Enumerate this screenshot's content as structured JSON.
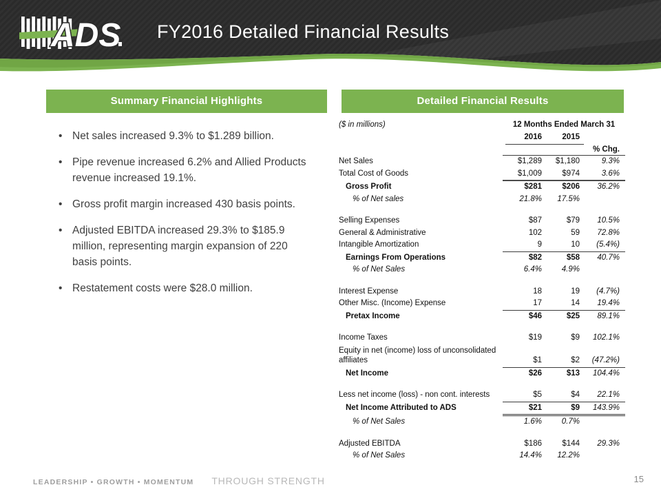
{
  "header": {
    "title": "FY2016 Detailed Financial Results",
    "logo_text": "ADS"
  },
  "colors": {
    "accent_green": "#7CB350",
    "header_dark": "#2A2A2A",
    "table_text": "#111111",
    "bullet_text": "#404040",
    "footer_gray": "#9E9E9E"
  },
  "left_panel": {
    "title": "Summary Financial Highlights",
    "bullets": [
      "Net sales increased 9.3% to $1.289 billion.",
      "Pipe revenue increased 6.2% and Allied Products revenue increased 19.1%.",
      "Gross profit margin increased 430 basis points.",
      "Adjusted EBITDA increased 29.3% to $185.9 million, representing margin expansion of 220 basis points.",
      "Restatement costs were $28.0 million."
    ]
  },
  "right_panel": {
    "title": "Detailed Financial Results",
    "units_note": "($ in millions)",
    "period_header": "12 Months Ended March 31",
    "col_2016": "2016",
    "col_2015": "2015",
    "pct_chg_label": "% Chg.",
    "rows": [
      {
        "label": "Net Sales",
        "v2016": "$1,289",
        "v2015": "$1,180",
        "chg": "9.3%"
      },
      {
        "label": "Total Cost of Goods",
        "v2016": "$1,009",
        "v2015": "$974",
        "chg": "3.6%",
        "line_after": "thick"
      },
      {
        "label": "Gross Profit",
        "bold": true,
        "indent": 1,
        "v2016": "$281",
        "v2015": "$206",
        "chg": "36.2%"
      },
      {
        "label": "% of Net sales",
        "pct": true,
        "indent": 2,
        "v2016": "21.8%",
        "v2015": "17.5%",
        "chg": "",
        "gap_after": true
      },
      {
        "label": "Selling Expenses",
        "v2016": "$87",
        "v2015": "$79",
        "chg": "10.5%"
      },
      {
        "label": "General & Administrative",
        "v2016": "102",
        "v2015": "59",
        "chg": "72.8%"
      },
      {
        "label": "Intangible Amortization",
        "v2016": "9",
        "v2015": "10",
        "chg": "(5.4%)",
        "line_after": "single"
      },
      {
        "label": "Earnings From Operations",
        "bold": true,
        "indent": 1,
        "v2016": "$82",
        "v2015": "$58",
        "chg": "40.7%"
      },
      {
        "label": "% of Net Sales",
        "pct": true,
        "indent": 2,
        "v2016": "6.4%",
        "v2015": "4.9%",
        "chg": "",
        "gap_after": true
      },
      {
        "label": "Interest Expense",
        "v2016": "18",
        "v2015": "19",
        "chg": "(4.7%)"
      },
      {
        "label": "Other Misc. (Income) Expense",
        "v2016": "17",
        "v2015": "14",
        "chg": "19.4%",
        "line_after": "single"
      },
      {
        "label": "Pretax Income",
        "bold": true,
        "indent": 1,
        "v2016": "$46",
        "v2015": "$25",
        "chg": "89.1%",
        "gap_after": true
      },
      {
        "label": "Income Taxes",
        "v2016": "$19",
        "v2015": "$9",
        "chg": "102.1%"
      },
      {
        "label": "Equity in net (income) loss of unconsolidated affiliates",
        "multiline": true,
        "v2016": "$1",
        "v2015": "$2",
        "chg": "(47.2%)",
        "line_after": "single"
      },
      {
        "label": "Net Income",
        "bold": true,
        "indent": 1,
        "v2016": "$26",
        "v2015": "$13",
        "chg": "104.4%",
        "gap_after": true
      },
      {
        "label": "Less net income (loss) - non cont. interests",
        "v2016": "$5",
        "v2015": "$4",
        "chg": "22.1%",
        "line_after": "single"
      },
      {
        "label": "Net Income Attributed to ADS",
        "bold": true,
        "indent": 1,
        "v2016": "$21",
        "v2015": "$9",
        "chg": "143.9%",
        "line_after": "double"
      },
      {
        "label": "% of Net Sales",
        "pct": true,
        "indent": 2,
        "v2016": "1.6%",
        "v2015": "0.7%",
        "chg": "",
        "gap_after": true
      },
      {
        "label": "Adjusted EBITDA",
        "v2016": "$186",
        "v2015": "$144",
        "chg": "29.3%"
      },
      {
        "label": "% of Net Sales",
        "pct": true,
        "indent": 2,
        "v2016": "14.4%",
        "v2015": "12.2%",
        "chg": ""
      }
    ]
  },
  "footer": {
    "tagline_left": "LEADERSHIP • GROWTH • MOMENTUM",
    "tagline_right": "THROUGH STRENGTH",
    "page_number": "15"
  }
}
